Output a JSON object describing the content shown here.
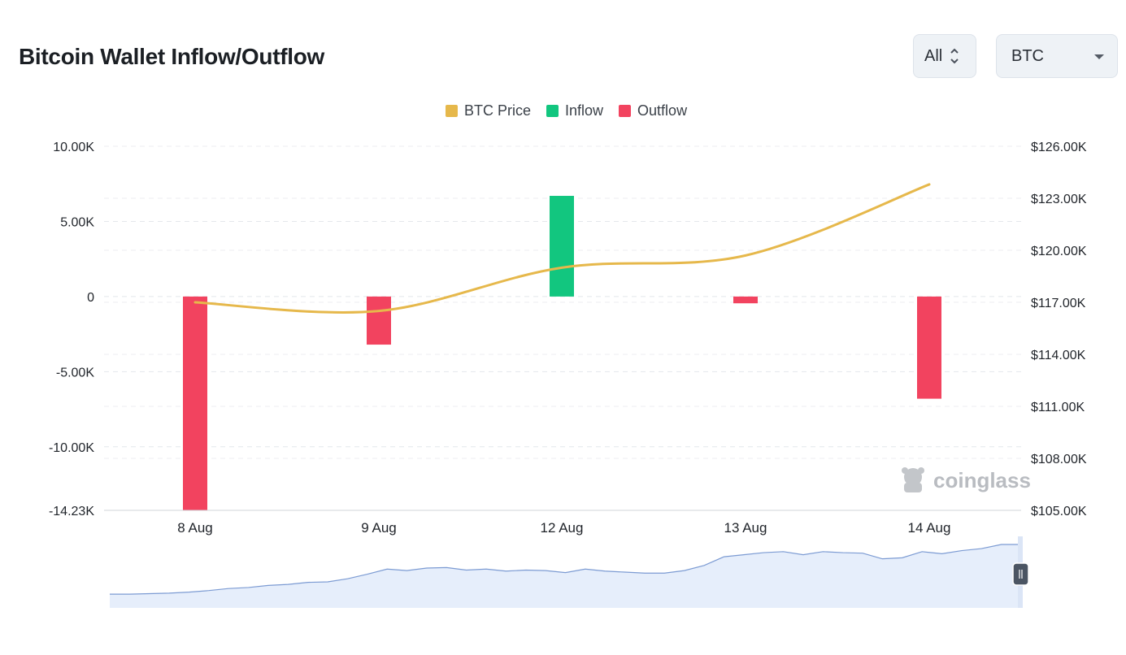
{
  "page": {
    "title": "Bitcoin Wallet Inflow/Outflow"
  },
  "controls": {
    "range": {
      "value": "All",
      "icon": "chevron-updown-icon"
    },
    "asset": {
      "value": "BTC",
      "icon": "caret-down-icon"
    }
  },
  "watermark": {
    "text": "coinglass",
    "icon": "coinglass-logo-icon"
  },
  "colors": {
    "price": "#e6b84b",
    "inflow": "#12c67f",
    "outflow": "#f2435f",
    "navigator_fill": "#e6eefb",
    "navigator_line": "#7c9bd3"
  },
  "chart_data": {
    "type": "bar",
    "title": "",
    "categories": [
      "8 Aug",
      "9 Aug",
      "12 Aug",
      "13 Aug",
      "14 Aug"
    ],
    "series": [
      {
        "name": "Inflow",
        "kind": "bar",
        "axis": "left",
        "values": [
          0,
          0,
          6700,
          0,
          0
        ]
      },
      {
        "name": "Outflow",
        "kind": "bar",
        "axis": "left",
        "values": [
          -14230,
          -3200,
          0,
          -450,
          -6800
        ]
      },
      {
        "name": "BTC Price",
        "kind": "line",
        "axis": "right",
        "values": [
          117000,
          116500,
          119000,
          119700,
          123800
        ]
      }
    ],
    "left_axis": {
      "ticks": [
        "10.00K",
        "5.00K",
        "0",
        "-5.00K",
        "-10.00K",
        "-14.23K"
      ],
      "values": [
        10000,
        5000,
        0,
        -5000,
        -10000,
        -14230
      ],
      "range": [
        -14230,
        10000
      ]
    },
    "right_axis": {
      "ticks": [
        "$126.00K",
        "$123.00K",
        "$120.00K",
        "$117.00K",
        "$114.00K",
        "$111.00K",
        "$108.00K",
        "$105.00K"
      ],
      "values": [
        126000,
        123000,
        120000,
        117000,
        114000,
        111000,
        108000,
        105000
      ],
      "range": [
        105000,
        126000
      ]
    },
    "legend": [
      "BTC Price",
      "Inflow",
      "Outflow"
    ],
    "legend_position": "top-center",
    "grid": true,
    "navigator": {
      "values": [
        0.03,
        0.03,
        0.04,
        0.05,
        0.07,
        0.1,
        0.14,
        0.16,
        0.2,
        0.22,
        0.26,
        0.27,
        0.33,
        0.42,
        0.52,
        0.49,
        0.54,
        0.55,
        0.5,
        0.52,
        0.48,
        0.5,
        0.49,
        0.45,
        0.52,
        0.48,
        0.46,
        0.44,
        0.44,
        0.49,
        0.59,
        0.76,
        0.8,
        0.84,
        0.86,
        0.8,
        0.86,
        0.84,
        0.83,
        0.72,
        0.74,
        0.86,
        0.82,
        0.88,
        0.92,
        1.0,
        1.0
      ]
    }
  }
}
